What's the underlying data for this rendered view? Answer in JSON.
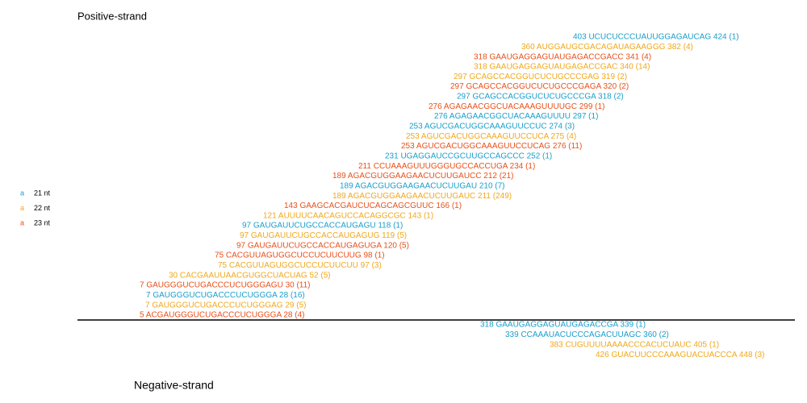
{
  "positive_label": "Positive-strand",
  "negative_label": "Negative-strand",
  "legend": [
    {
      "symbol": "a",
      "label": "21 nt",
      "color": "#1a9ec9"
    },
    {
      "symbol": "a",
      "label": "22 nt",
      "color": "#f0a81c"
    },
    {
      "symbol": "a",
      "label": "23 nt",
      "color": "#e8501a"
    }
  ],
  "positive_reads": [
    {
      "text": "403 UCUCUCCCUAUUGGAGAUCAG 424 (1)",
      "color": "#1a9ec9"
    },
    {
      "text": "360 AUGGAUGCGACAGAUAGAAGGG 382 (4)",
      "color": "#f0a81c"
    },
    {
      "text": "318 GAAUGAGGAGUAUGAGACCGACC 341 (4)",
      "color": "#e8501a"
    },
    {
      "text": "318 GAAUGAGGAGUAUGAGACCGAC 340 (14)",
      "color": "#f0a81c"
    },
    {
      "text": "297 GCAGCCACGGUCUCUGCCCGAG 319 (2)",
      "color": "#f0a81c"
    },
    {
      "text": "297 GCAGCCACGGUCUCUGCCCGAGA 320 (2)",
      "color": "#e8501a"
    },
    {
      "text": "297 GCAGCCACGGUCUCUGCCCGA 318 (2)",
      "color": "#1a9ec9"
    },
    {
      "text": "276 AGAGAACGGCUACAAAGUUUUGC 299 (1)",
      "color": "#e8501a"
    },
    {
      "text": "276 AGAGAACGGCUACAAAGUUUU 297 (1)",
      "color": "#1a9ec9"
    },
    {
      "text": "253 AGUCGACUGGCAAAGUUCCUC 274 (3)",
      "color": "#1a9ec9"
    },
    {
      "text": "253 AGUCGACUGGCAAAGUUCCUCA 275 (4)",
      "color": "#f0a81c"
    },
    {
      "text": "253 AGUCGACUGGCAAAGUUCCUCAG 276 (11)",
      "color": "#e8501a"
    },
    {
      "text": "231 UGAGGAUCCGCUUGCCAGCCC 252 (1)",
      "color": "#1a9ec9"
    },
    {
      "text": "211 CCUAAAGUUUGGGUGCCACCUGA 234 (1)",
      "color": "#e8501a"
    },
    {
      "text": "189 AGACGUGGAAGAACUCUUGAUCC 212 (21)",
      "color": "#e8501a"
    },
    {
      "text": "189 AGACGUGGAAGAACUCUUGAU 210 (7)",
      "color": "#1a9ec9"
    },
    {
      "text": "189 AGACGUGGAAGAACUCUUGAUC 211 (249)",
      "color": "#f0a81c"
    },
    {
      "text": "143 GAAGCACGAUCUCAGCAGCGUUC 166 (1)",
      "color": "#e8501a"
    },
    {
      "text": "121 AUUUUCAACAGUCCACAGGCGC 143 (1)",
      "color": "#f0a81c"
    },
    {
      "text": "97 GAUGAUUCUGCCACCAUGAGU 118 (1)",
      "color": "#1a9ec9"
    },
    {
      "text": "97 GAUGAUUCUGCCACCAUGAGUG 119 (5)",
      "color": "#f0a81c"
    },
    {
      "text": "97 GAUGAUUCUGCCACCAUGAGUGA 120 (5)",
      "color": "#e8501a"
    },
    {
      "text": "75 CACGUUAGUGGCUCCUCUUCUUG 98 (1)",
      "color": "#e8501a"
    },
    {
      "text": "75 CACGUUAGUGGCUCCUCUUCUU 97 (3)",
      "color": "#f0a81c"
    },
    {
      "text": "30 CACGAAUUAACGUGGCUACUAG 52 (5)",
      "color": "#f0a81c"
    },
    {
      "text": "7 GAUGGGUCUGACCCUCUGGGAGU 30 (11)",
      "color": "#e8501a"
    },
    {
      "text": "7 GAUGGGUCUGACCCUCUGGGA 28 (16)",
      "color": "#1a9ec9"
    },
    {
      "text": "7 GAUGGGUCUGACCCUCUGGGAG 29 (5)",
      "color": "#f0a81c"
    },
    {
      "text": "5 ACGAUGGGUCUGACCCUCUGGGA 28 (4)",
      "color": "#e8501a"
    }
  ],
  "negative_reads": [
    {
      "text": "318 GAAUGAGGAGUAUGAGACCGA 339 (1)",
      "color": "#1a9ec9"
    },
    {
      "text": "339 CCAAAUACUCCCAGACUUAGC 360 (2)",
      "color": "#1a9ec9"
    },
    {
      "text": "383 CUGUUUUAAAACCCACUCUAUC 405 (1)",
      "color": "#f0a81c"
    },
    {
      "text": "426 GUACUUCCCAAAGUACUACCCA 448 (3)",
      "color": "#f0a81c"
    }
  ]
}
